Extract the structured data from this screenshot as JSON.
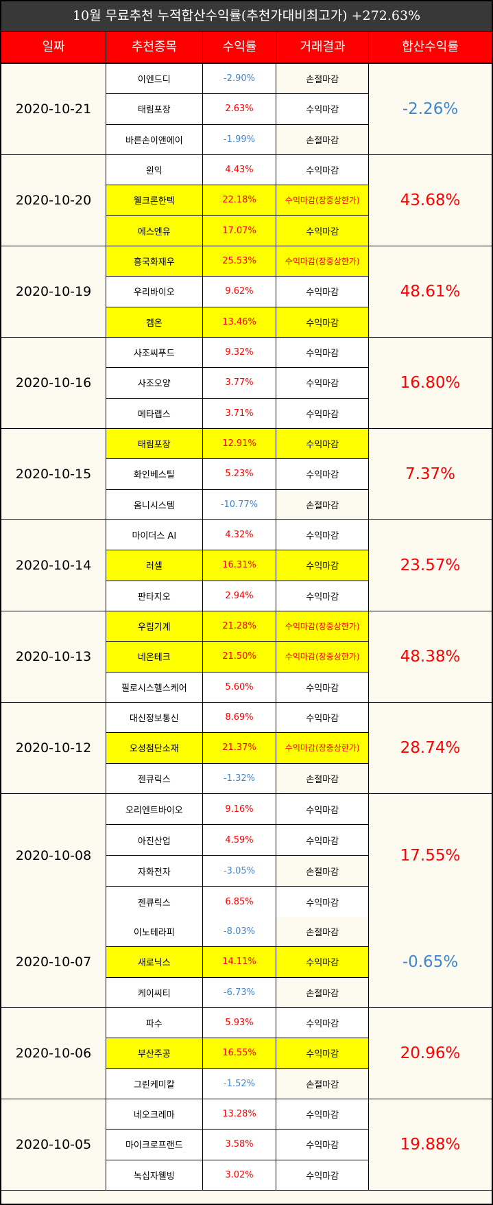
{
  "title": "10월 무료추천 누적합산수익률(추천가대비최고가) +272.63%",
  "headers": [
    "일짜",
    "추천종목",
    "수익률",
    "거래결과",
    "합산수익률"
  ],
  "groups": [
    {
      "date": "2020-10-21",
      "total": "-2.26%",
      "rows": [
        {
          "stock": "이엔드디",
          "rate": "-2.90%",
          "result": "손절마감",
          "highlight": false
        },
        {
          "stock": "태림포장",
          "rate": "2.63%",
          "result": "수익마감",
          "highlight": false
        },
        {
          "stock": "바른손이앤에이",
          "rate": "-1.99%",
          "result": "손절마감",
          "highlight": false
        }
      ]
    },
    {
      "date": "2020-10-20",
      "total": "43.68%",
      "rows": [
        {
          "stock": "윈익",
          "rate": "4.43%",
          "result": "수익마감",
          "highlight": false
        },
        {
          "stock": "웰크론한텍",
          "rate": "22.18%",
          "result": "수익마감(장중상한가)",
          "highlight": true
        },
        {
          "stock": "에스엔유",
          "rate": "17.07%",
          "result": "수익마감",
          "highlight": true
        }
      ]
    },
    {
      "date": "2020-10-19",
      "total": "48.61%",
      "rows": [
        {
          "stock": "흥국화재우",
          "rate": "25.53%",
          "result": "수익마감(장중상한가)",
          "highlight": true
        },
        {
          "stock": "우리바이오",
          "rate": "9.62%",
          "result": "수익마감",
          "highlight": false
        },
        {
          "stock": "켐온",
          "rate": "13.46%",
          "result": "수익마감",
          "highlight": true
        }
      ]
    },
    {
      "date": "2020-10-16",
      "total": "16.80%",
      "rows": [
        {
          "stock": "사조씨푸드",
          "rate": "9.32%",
          "result": "수익마감",
          "highlight": false
        },
        {
          "stock": "사조오양",
          "rate": "3.77%",
          "result": "수익마감",
          "highlight": false
        },
        {
          "stock": "메타랩스",
          "rate": "3.71%",
          "result": "수익마감",
          "highlight": false
        }
      ]
    },
    {
      "date": "2020-10-15",
      "total": "7.37%",
      "rows": [
        {
          "stock": "태림포장",
          "rate": "12.91%",
          "result": "수익마감",
          "highlight": true
        },
        {
          "stock": "화인베스틸",
          "rate": "5.23%",
          "result": "수익마감",
          "highlight": false
        },
        {
          "stock": "옴니시스템",
          "rate": "-10.77%",
          "result": "손절마감",
          "highlight": false
        }
      ]
    },
    {
      "date": "2020-10-14",
      "total": "23.57%",
      "rows": [
        {
          "stock": "마이더스 AI",
          "rate": "4.32%",
          "result": "수익마감",
          "highlight": false
        },
        {
          "stock": "러셀",
          "rate": "16.31%",
          "result": "수익마감",
          "highlight": true
        },
        {
          "stock": "판타지오",
          "rate": "2.94%",
          "result": "수익마감",
          "highlight": false
        }
      ]
    },
    {
      "date": "2020-10-13",
      "total": "48.38%",
      "rows": [
        {
          "stock": "우림기계",
          "rate": "21.28%",
          "result": "수익마감(장중상한가)",
          "highlight": true
        },
        {
          "stock": "네온테크",
          "rate": "21.50%",
          "result": "수익마감(장중상한가)",
          "highlight": true
        },
        {
          "stock": "필로시스헬스케어",
          "rate": "5.60%",
          "result": "수익마감",
          "highlight": false
        }
      ]
    },
    {
      "date": "2020-10-12",
      "total": "28.74%",
      "rows": [
        {
          "stock": "대신정보통신",
          "rate": "8.69%",
          "result": "수익마감",
          "highlight": false
        },
        {
          "stock": "오성첨단소재",
          "rate": "21.37%",
          "result": "수익마감(장중상한가)",
          "highlight": true
        },
        {
          "stock": "젠큐릭스",
          "rate": "-1.32%",
          "result": "손절마감",
          "highlight": false
        }
      ]
    },
    {
      "date": "2020-10-08",
      "total": "17.55%",
      "rows": [
        {
          "stock": "오리엔트바이오",
          "rate": "9.16%",
          "result": "수익마감",
          "highlight": false
        },
        {
          "stock": "아진산업",
          "rate": "4.59%",
          "result": "수익마감",
          "highlight": false
        },
        {
          "stock": "자화전자",
          "rate": "-3.05%",
          "result": "손절마감",
          "highlight": false
        },
        {
          "stock": "젠큐릭스",
          "rate": "6.85%",
          "result": "수익마감",
          "highlight": false
        }
      ]
    },
    {
      "date": "2020-10-07",
      "total": "-0.65%",
      "rows": [
        {
          "stock": "이노테라피",
          "rate": "-8.03%",
          "result": "손절마감",
          "highlight": false
        },
        {
          "stock": "새로닉스",
          "rate": "14.11%",
          "result": "수익마감",
          "highlight": true
        },
        {
          "stock": "케이씨티",
          "rate": "-6.73%",
          "result": "손절마감",
          "highlight": false
        }
      ]
    },
    {
      "date": "2020-10-06",
      "total": "20.96%",
      "rows": [
        {
          "stock": "파수",
          "rate": "5.93%",
          "result": "수익마감",
          "highlight": false
        },
        {
          "stock": "부산주공",
          "rate": "16.55%",
          "result": "수익마감",
          "highlight": true
        },
        {
          "stock": "그린케미칼",
          "rate": "-1.52%",
          "result": "손절마감",
          "highlight": false
        }
      ]
    },
    {
      "date": "2020-10-05",
      "total": "19.88%",
      "rows": [
        {
          "stock": "네오크레마",
          "rate": "13.28%",
          "result": "수익마감",
          "highlight": false
        },
        {
          "stock": "마이크로프랜드",
          "rate": "3.58%",
          "result": "수익마감",
          "highlight": false
        },
        {
          "stock": "녹십자웰빙",
          "rate": "3.02%",
          "result": "수익마감",
          "highlight": false
        }
      ]
    }
  ],
  "colors": {
    "title_bg": "#383838",
    "header_bg": "#ff0000",
    "highlight": "#ffff00",
    "positive": "#ff0000",
    "negative": "#3f87cf",
    "cream": "#fdfaf0"
  }
}
